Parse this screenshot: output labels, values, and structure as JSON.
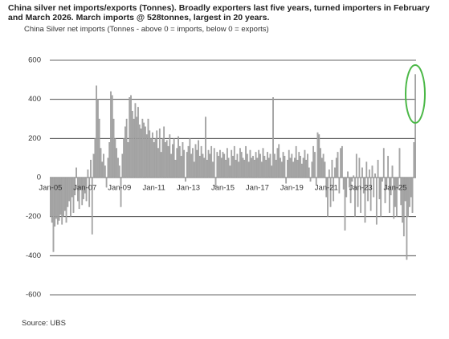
{
  "chart_data": {
    "type": "bar",
    "title": "China silver net imports/exports (Tonnes). Broadly exporters last five years, turned importers in February and March 2026. March imports @ 528tonnes, largest in 20 years.",
    "ylabel": "China Silver net imports (Tonnes - above 0 = imports, below 0 = exports)",
    "source": "Source: UBS",
    "color": "#a6a6a6",
    "ylim": [
      -600,
      600
    ],
    "yticks": [
      -600,
      -400,
      -200,
      0,
      200,
      400,
      600
    ],
    "grid": true,
    "categories": [
      "Jan-05",
      null,
      null,
      null,
      null,
      null,
      null,
      null,
      null,
      null,
      null,
      null,
      null,
      null,
      null,
      null,
      null,
      null,
      null,
      null,
      null,
      null,
      null,
      null,
      "Jan-07",
      null,
      null,
      null,
      null,
      null,
      null,
      null,
      null,
      null,
      null,
      null,
      null,
      null,
      null,
      null,
      null,
      null,
      null,
      null,
      null,
      null,
      null,
      null,
      "Jan-09",
      null,
      null,
      null,
      null,
      null,
      null,
      null,
      null,
      null,
      null,
      null,
      null,
      null,
      null,
      null,
      null,
      null,
      null,
      null,
      null,
      null,
      null,
      null,
      "Jan-11",
      null,
      null,
      null,
      null,
      null,
      null,
      null,
      null,
      null,
      null,
      null,
      null,
      null,
      null,
      null,
      null,
      null,
      null,
      null,
      null,
      null,
      null,
      null,
      "Jan-13",
      null,
      null,
      null,
      null,
      null,
      null,
      null,
      null,
      null,
      null,
      null,
      null,
      null,
      null,
      null,
      null,
      null,
      null,
      null,
      null,
      null,
      null,
      null,
      "Jan-15",
      null,
      null,
      null,
      null,
      null,
      null,
      null,
      null,
      null,
      null,
      null,
      null,
      null,
      null,
      null,
      null,
      null,
      null,
      null,
      null,
      null,
      null,
      null,
      "Jan-17",
      null,
      null,
      null,
      null,
      null,
      null,
      null,
      null,
      null,
      null,
      null,
      null,
      null,
      null,
      null,
      null,
      null,
      null,
      null,
      null,
      null,
      null,
      null,
      "Jan-19",
      null,
      null,
      null,
      null,
      null,
      null,
      null,
      null,
      null,
      null,
      null,
      null,
      null,
      null,
      null,
      null,
      null,
      null,
      null,
      null,
      null,
      null,
      null,
      "Jan-21",
      null,
      null,
      null,
      null,
      null,
      null,
      null,
      null,
      null,
      null,
      null,
      null,
      null,
      null,
      null,
      null,
      null,
      null,
      null,
      null,
      null,
      null,
      null,
      "Jan-23",
      null,
      null,
      null,
      null,
      null,
      null,
      null,
      null,
      null,
      null,
      null,
      null,
      null,
      null,
      null,
      null,
      null,
      null,
      null,
      null,
      null,
      null,
      null,
      "Jan-25",
      null,
      null,
      null,
      null,
      null,
      null,
      null,
      null,
      null,
      null,
      null,
      null,
      null,
      null
    ],
    "values": [
      -200,
      -230,
      -380,
      -250,
      -210,
      -240,
      -220,
      -190,
      -240,
      -200,
      -170,
      -230,
      -150,
      -120,
      -200,
      -100,
      -180,
      -90,
      50,
      -120,
      -160,
      -60,
      -140,
      -110,
      -80,
      -120,
      40,
      -150,
      90,
      -290,
      120,
      200,
      470,
      400,
      300,
      150,
      80,
      120,
      60,
      -50,
      100,
      180,
      440,
      420,
      300,
      200,
      150,
      100,
      60,
      -150,
      120,
      200,
      260,
      300,
      180,
      410,
      420,
      340,
      300,
      380,
      310,
      360,
      270,
      250,
      300,
      280,
      260,
      220,
      300,
      240,
      200,
      230,
      180,
      200,
      240,
      150,
      250,
      130,
      200,
      260,
      180,
      190,
      160,
      220,
      120,
      170,
      200,
      90,
      150,
      210,
      160,
      110,
      180,
      140,
      -20,
      130,
      160,
      200,
      120,
      150,
      80,
      170,
      140,
      190,
      110,
      160,
      120,
      100,
      310,
      90,
      140,
      120,
      160,
      80,
      150,
      -50,
      130,
      110,
      140,
      100,
      130,
      120,
      90,
      150,
      100,
      60,
      140,
      110,
      160,
      90,
      120,
      80,
      150,
      130,
      100,
      90,
      160,
      120,
      80,
      140,
      100,
      110,
      90,
      130,
      100,
      140,
      120,
      80,
      150,
      110,
      90,
      130,
      100,
      120,
      60,
      410,
      120,
      90,
      150,
      170,
      100,
      80,
      130,
      110,
      -30,
      90,
      140,
      100,
      120,
      80,
      100,
      160,
      90,
      130,
      110,
      70,
      100,
      140,
      90,
      120,
      50,
      -20,
      80,
      160,
      130,
      -40,
      230,
      220,
      150,
      100,
      120,
      80,
      -100,
      -200,
      40,
      -150,
      90,
      -120,
      50,
      100,
      130,
      -80,
      150,
      160,
      -60,
      -270,
      -100,
      30,
      -50,
      -130,
      -20,
      10,
      -200,
      120,
      -150,
      100,
      -180,
      50,
      -80,
      -230,
      80,
      -120,
      40,
      -170,
      60,
      -100,
      20,
      -240,
      90,
      -110,
      -200,
      -20,
      150,
      -130,
      -60,
      110,
      -180,
      -90,
      60,
      -210,
      -150,
      -200,
      -60,
      150,
      -140,
      -230,
      -300,
      -120,
      -420,
      -200,
      -150,
      -100,
      -180,
      180,
      528
    ]
  }
}
